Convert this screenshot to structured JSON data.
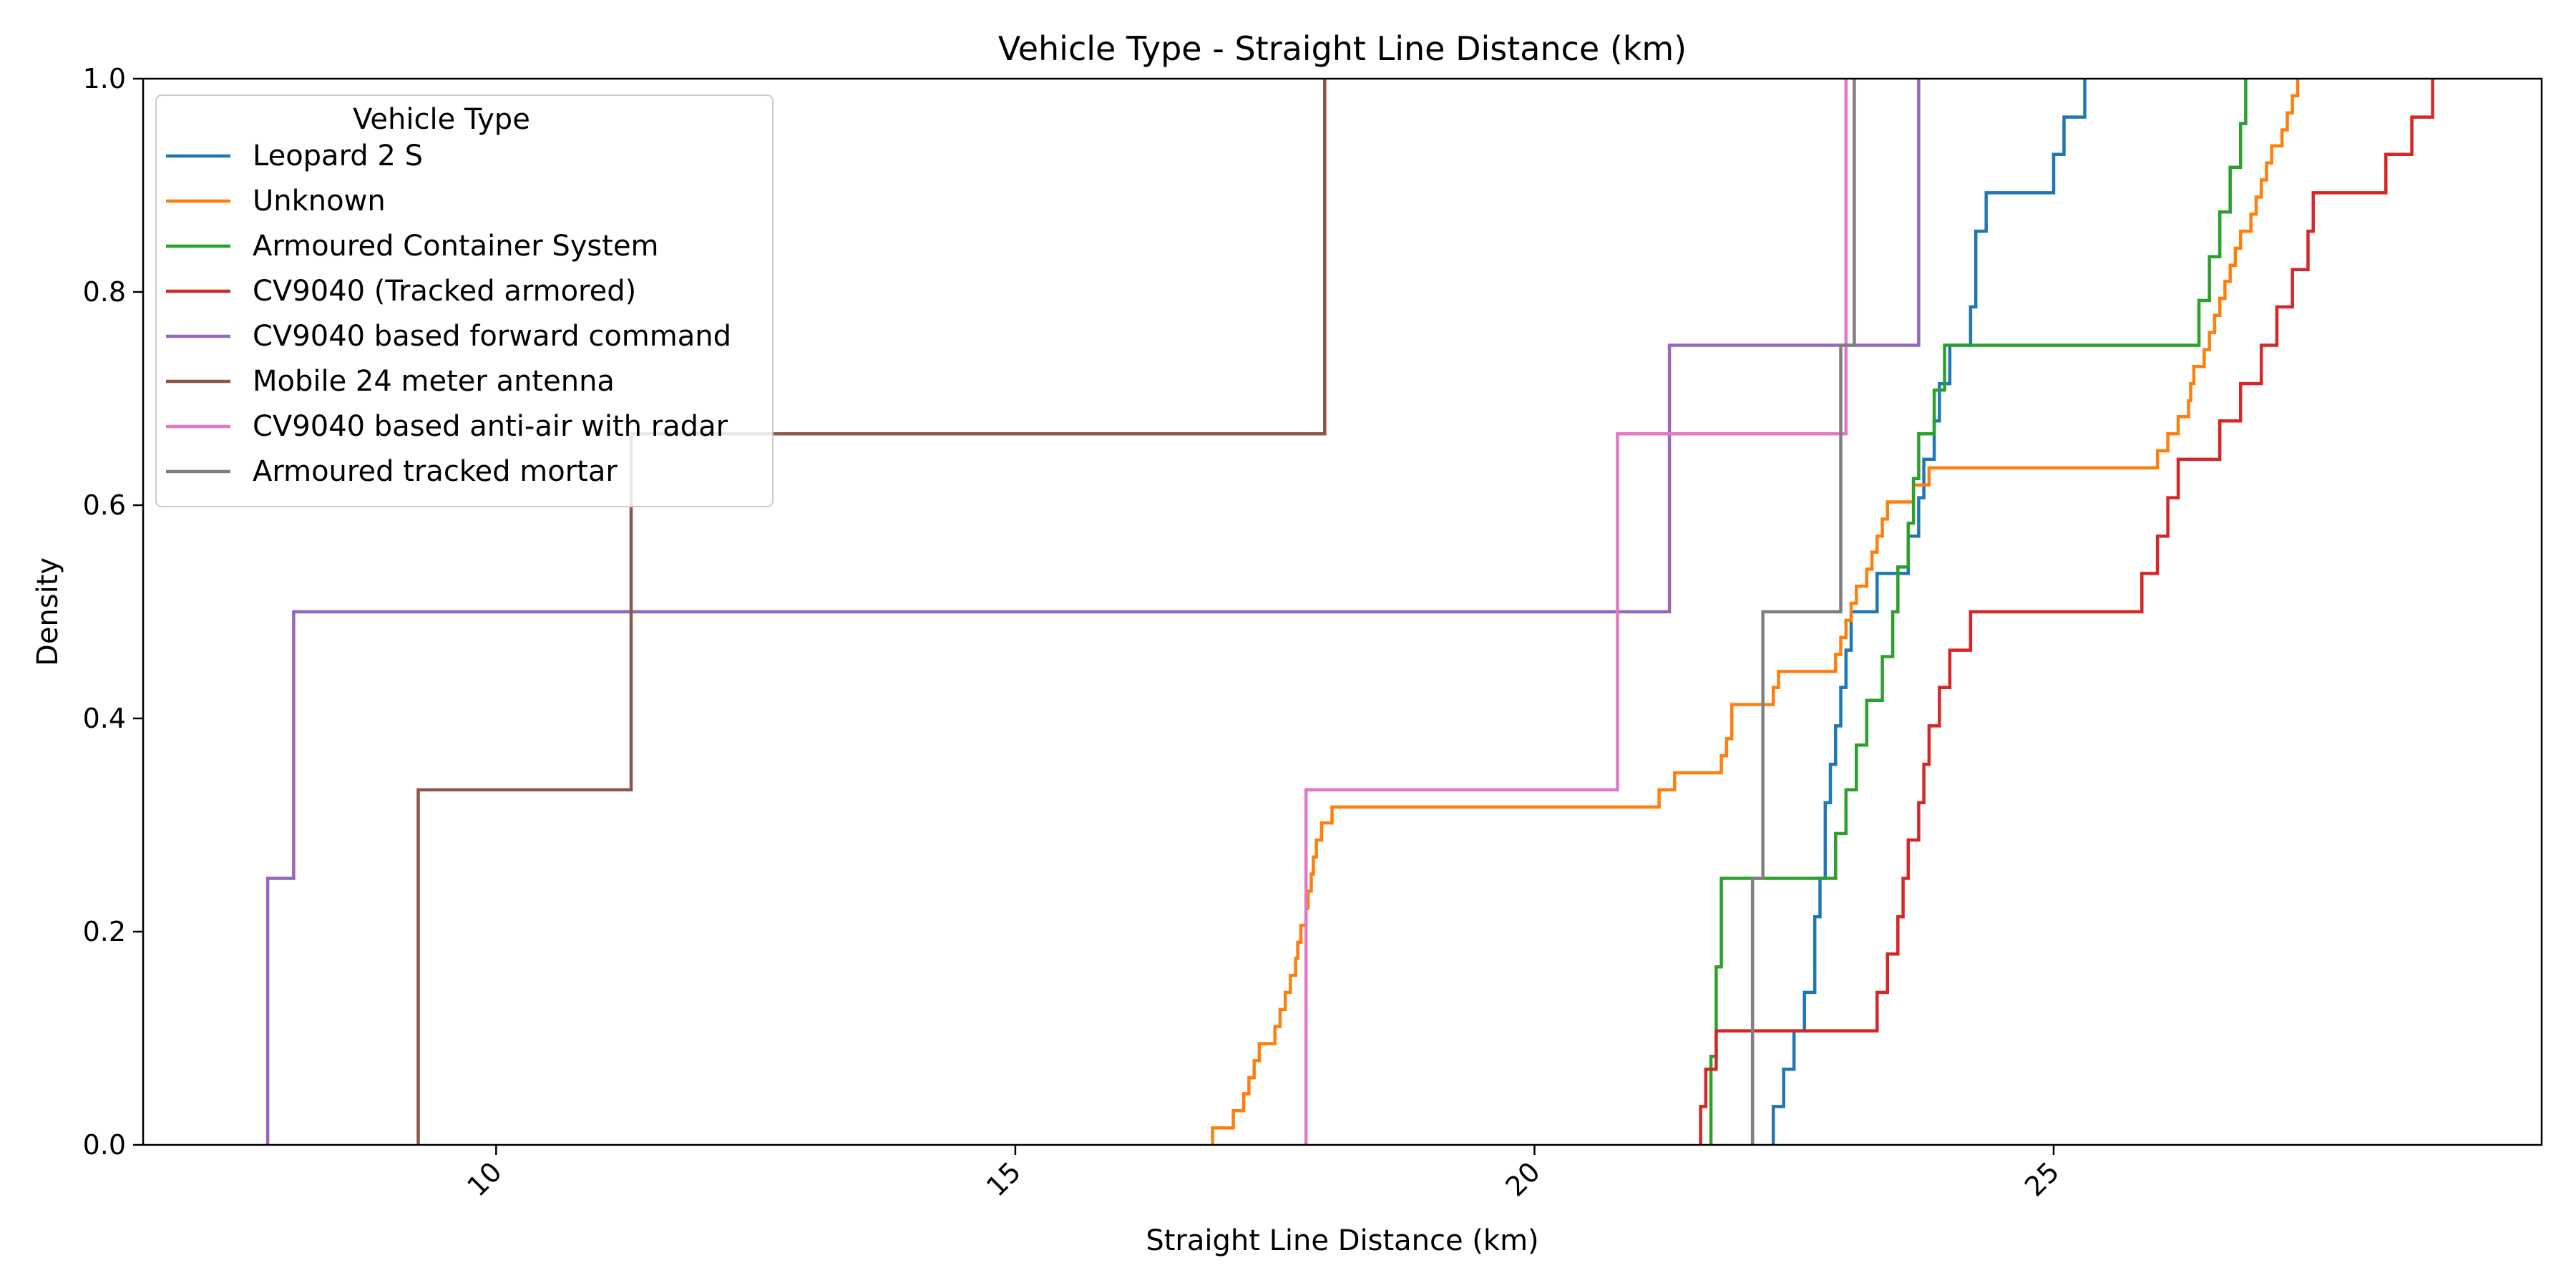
{
  "chart_data": {
    "type": "line",
    "title": "Vehicle Type - Straight Line Distance (km)",
    "xlabel": "Straight Line Distance (km)",
    "ylabel": "Density",
    "xlim": [
      6.6,
      29.7
    ],
    "ylim": [
      0,
      1.0
    ],
    "x_ticks": [
      10,
      15,
      20,
      25
    ],
    "y_ticks": [
      0.0,
      0.2,
      0.4,
      0.6,
      0.8,
      1.0
    ],
    "x_tick_rotation_deg": 45,
    "grid": false,
    "legend": {
      "title": "Vehicle Type",
      "placement": "top-left"
    },
    "series": [
      {
        "name": "Leopard 2 S",
        "color": "#1f77b4",
        "points": [
          [
            22.3,
            0
          ],
          [
            22.3,
            0.036
          ],
          [
            22.4,
            0.036
          ],
          [
            22.4,
            0.071
          ],
          [
            22.5,
            0.071
          ],
          [
            22.5,
            0.107
          ],
          [
            22.6,
            0.107
          ],
          [
            22.6,
            0.143
          ],
          [
            22.7,
            0.143
          ],
          [
            22.7,
            0.214
          ],
          [
            22.75,
            0.214
          ],
          [
            22.75,
            0.25
          ],
          [
            22.8,
            0.25
          ],
          [
            22.8,
            0.321
          ],
          [
            22.85,
            0.321
          ],
          [
            22.85,
            0.357
          ],
          [
            22.9,
            0.357
          ],
          [
            22.9,
            0.393
          ],
          [
            22.95,
            0.393
          ],
          [
            22.95,
            0.429
          ],
          [
            23.0,
            0.429
          ],
          [
            23.0,
            0.464
          ],
          [
            23.05,
            0.464
          ],
          [
            23.05,
            0.5
          ],
          [
            23.3,
            0.5
          ],
          [
            23.3,
            0.536
          ],
          [
            23.6,
            0.536
          ],
          [
            23.6,
            0.571
          ],
          [
            23.7,
            0.571
          ],
          [
            23.7,
            0.607
          ],
          [
            23.75,
            0.607
          ],
          [
            23.75,
            0.643
          ],
          [
            23.85,
            0.643
          ],
          [
            23.85,
            0.679
          ],
          [
            23.9,
            0.679
          ],
          [
            23.9,
            0.714
          ],
          [
            24.0,
            0.714
          ],
          [
            24.0,
            0.75
          ],
          [
            24.2,
            0.75
          ],
          [
            24.2,
            0.786
          ],
          [
            24.25,
            0.786
          ],
          [
            24.25,
            0.857
          ],
          [
            24.35,
            0.857
          ],
          [
            24.35,
            0.893
          ],
          [
            25.0,
            0.893
          ],
          [
            25.0,
            0.929
          ],
          [
            25.1,
            0.929
          ],
          [
            25.1,
            0.964
          ],
          [
            25.3,
            0.964
          ],
          [
            25.3,
            1.0
          ]
        ]
      },
      {
        "name": "Unknown",
        "color": "#ff7f0e",
        "points": [
          [
            16.9,
            0
          ],
          [
            16.9,
            0.016
          ],
          [
            17.1,
            0.016
          ],
          [
            17.1,
            0.032
          ],
          [
            17.2,
            0.032
          ],
          [
            17.2,
            0.048
          ],
          [
            17.25,
            0.048
          ],
          [
            17.25,
            0.063
          ],
          [
            17.3,
            0.063
          ],
          [
            17.3,
            0.079
          ],
          [
            17.35,
            0.079
          ],
          [
            17.35,
            0.095
          ],
          [
            17.5,
            0.095
          ],
          [
            17.5,
            0.111
          ],
          [
            17.55,
            0.111
          ],
          [
            17.55,
            0.127
          ],
          [
            17.6,
            0.127
          ],
          [
            17.6,
            0.143
          ],
          [
            17.65,
            0.143
          ],
          [
            17.65,
            0.159
          ],
          [
            17.7,
            0.159
          ],
          [
            17.7,
            0.175
          ],
          [
            17.72,
            0.175
          ],
          [
            17.72,
            0.19
          ],
          [
            17.75,
            0.19
          ],
          [
            17.75,
            0.206
          ],
          [
            17.8,
            0.206
          ],
          [
            17.8,
            0.222
          ],
          [
            17.82,
            0.222
          ],
          [
            17.82,
            0.238
          ],
          [
            17.85,
            0.238
          ],
          [
            17.85,
            0.254
          ],
          [
            17.87,
            0.254
          ],
          [
            17.87,
            0.27
          ],
          [
            17.9,
            0.27
          ],
          [
            17.9,
            0.286
          ],
          [
            17.95,
            0.286
          ],
          [
            17.95,
            0.302
          ],
          [
            18.05,
            0.302
          ],
          [
            18.05,
            0.317
          ],
          [
            21.2,
            0.317
          ],
          [
            21.2,
            0.333
          ],
          [
            21.35,
            0.333
          ],
          [
            21.35,
            0.349
          ],
          [
            21.8,
            0.349
          ],
          [
            21.8,
            0.365
          ],
          [
            21.85,
            0.365
          ],
          [
            21.85,
            0.381
          ],
          [
            21.9,
            0.381
          ],
          [
            21.9,
            0.413
          ],
          [
            22.3,
            0.413
          ],
          [
            22.3,
            0.429
          ],
          [
            22.35,
            0.429
          ],
          [
            22.35,
            0.444
          ],
          [
            22.9,
            0.444
          ],
          [
            22.9,
            0.46
          ],
          [
            22.95,
            0.46
          ],
          [
            22.95,
            0.476
          ],
          [
            23.0,
            0.476
          ],
          [
            23.0,
            0.492
          ],
          [
            23.05,
            0.492
          ],
          [
            23.05,
            0.508
          ],
          [
            23.1,
            0.508
          ],
          [
            23.1,
            0.524
          ],
          [
            23.2,
            0.524
          ],
          [
            23.2,
            0.54
          ],
          [
            23.25,
            0.54
          ],
          [
            23.25,
            0.556
          ],
          [
            23.3,
            0.556
          ],
          [
            23.3,
            0.571
          ],
          [
            23.35,
            0.571
          ],
          [
            23.35,
            0.587
          ],
          [
            23.4,
            0.587
          ],
          [
            23.4,
            0.603
          ],
          [
            23.65,
            0.603
          ],
          [
            23.65,
            0.619
          ],
          [
            23.8,
            0.619
          ],
          [
            23.8,
            0.635
          ],
          [
            26.0,
            0.635
          ],
          [
            26.0,
            0.651
          ],
          [
            26.1,
            0.651
          ],
          [
            26.1,
            0.667
          ],
          [
            26.2,
            0.667
          ],
          [
            26.2,
            0.683
          ],
          [
            26.3,
            0.683
          ],
          [
            26.3,
            0.698
          ],
          [
            26.32,
            0.698
          ],
          [
            26.32,
            0.714
          ],
          [
            26.35,
            0.714
          ],
          [
            26.35,
            0.73
          ],
          [
            26.45,
            0.73
          ],
          [
            26.45,
            0.746
          ],
          [
            26.5,
            0.746
          ],
          [
            26.5,
            0.762
          ],
          [
            26.55,
            0.762
          ],
          [
            26.55,
            0.778
          ],
          [
            26.6,
            0.778
          ],
          [
            26.6,
            0.794
          ],
          [
            26.65,
            0.794
          ],
          [
            26.65,
            0.81
          ],
          [
            26.7,
            0.81
          ],
          [
            26.7,
            0.825
          ],
          [
            26.75,
            0.825
          ],
          [
            26.75,
            0.841
          ],
          [
            26.8,
            0.841
          ],
          [
            26.8,
            0.857
          ],
          [
            26.9,
            0.857
          ],
          [
            26.9,
            0.873
          ],
          [
            26.95,
            0.873
          ],
          [
            26.95,
            0.889
          ],
          [
            27.0,
            0.889
          ],
          [
            27.0,
            0.905
          ],
          [
            27.05,
            0.905
          ],
          [
            27.05,
            0.921
          ],
          [
            27.1,
            0.921
          ],
          [
            27.1,
            0.937
          ],
          [
            27.2,
            0.937
          ],
          [
            27.2,
            0.952
          ],
          [
            27.25,
            0.952
          ],
          [
            27.25,
            0.968
          ],
          [
            27.3,
            0.968
          ],
          [
            27.3,
            0.984
          ],
          [
            27.35,
            0.984
          ],
          [
            27.35,
            1.0
          ]
        ]
      },
      {
        "name": "Armoured Container System",
        "color": "#2ca02c",
        "points": [
          [
            21.7,
            0
          ],
          [
            21.7,
            0.083
          ],
          [
            21.75,
            0.083
          ],
          [
            21.75,
            0.167
          ],
          [
            21.8,
            0.167
          ],
          [
            21.8,
            0.25
          ],
          [
            22.9,
            0.25
          ],
          [
            22.9,
            0.292
          ],
          [
            23.0,
            0.292
          ],
          [
            23.0,
            0.333
          ],
          [
            23.1,
            0.333
          ],
          [
            23.1,
            0.375
          ],
          [
            23.2,
            0.375
          ],
          [
            23.2,
            0.417
          ],
          [
            23.35,
            0.417
          ],
          [
            23.35,
            0.458
          ],
          [
            23.45,
            0.458
          ],
          [
            23.45,
            0.5
          ],
          [
            23.5,
            0.5
          ],
          [
            23.5,
            0.542
          ],
          [
            23.6,
            0.542
          ],
          [
            23.6,
            0.583
          ],
          [
            23.65,
            0.583
          ],
          [
            23.65,
            0.625
          ],
          [
            23.7,
            0.625
          ],
          [
            23.7,
            0.667
          ],
          [
            23.85,
            0.667
          ],
          [
            23.85,
            0.708
          ],
          [
            23.95,
            0.708
          ],
          [
            23.95,
            0.75
          ],
          [
            26.4,
            0.75
          ],
          [
            26.4,
            0.792
          ],
          [
            26.5,
            0.792
          ],
          [
            26.5,
            0.833
          ],
          [
            26.6,
            0.833
          ],
          [
            26.6,
            0.875
          ],
          [
            26.7,
            0.875
          ],
          [
            26.7,
            0.917
          ],
          [
            26.8,
            0.917
          ],
          [
            26.8,
            0.958
          ],
          [
            26.85,
            0.958
          ],
          [
            26.85,
            1.0
          ]
        ]
      },
      {
        "name": "CV9040 (Tracked armored)",
        "color": "#d62728",
        "points": [
          [
            21.6,
            0
          ],
          [
            21.6,
            0.036
          ],
          [
            21.65,
            0.036
          ],
          [
            21.65,
            0.071
          ],
          [
            21.75,
            0.071
          ],
          [
            21.75,
            0.107
          ],
          [
            23.3,
            0.107
          ],
          [
            23.3,
            0.143
          ],
          [
            23.4,
            0.143
          ],
          [
            23.4,
            0.179
          ],
          [
            23.5,
            0.179
          ],
          [
            23.5,
            0.214
          ],
          [
            23.55,
            0.214
          ],
          [
            23.55,
            0.25
          ],
          [
            23.6,
            0.25
          ],
          [
            23.6,
            0.286
          ],
          [
            23.7,
            0.286
          ],
          [
            23.7,
            0.321
          ],
          [
            23.75,
            0.321
          ],
          [
            23.75,
            0.357
          ],
          [
            23.8,
            0.357
          ],
          [
            23.8,
            0.393
          ],
          [
            23.9,
            0.393
          ],
          [
            23.9,
            0.429
          ],
          [
            24.0,
            0.429
          ],
          [
            24.0,
            0.464
          ],
          [
            24.2,
            0.464
          ],
          [
            24.2,
            0.5
          ],
          [
            25.85,
            0.5
          ],
          [
            25.85,
            0.536
          ],
          [
            26.0,
            0.536
          ],
          [
            26.0,
            0.571
          ],
          [
            26.1,
            0.571
          ],
          [
            26.1,
            0.607
          ],
          [
            26.2,
            0.607
          ],
          [
            26.2,
            0.643
          ],
          [
            26.6,
            0.643
          ],
          [
            26.6,
            0.679
          ],
          [
            26.8,
            0.679
          ],
          [
            26.8,
            0.714
          ],
          [
            27.0,
            0.714
          ],
          [
            27.0,
            0.75
          ],
          [
            27.15,
            0.75
          ],
          [
            27.15,
            0.786
          ],
          [
            27.3,
            0.786
          ],
          [
            27.3,
            0.821
          ],
          [
            27.45,
            0.821
          ],
          [
            27.45,
            0.857
          ],
          [
            27.5,
            0.857
          ],
          [
            27.5,
            0.893
          ],
          [
            28.2,
            0.893
          ],
          [
            28.2,
            0.929
          ],
          [
            28.45,
            0.929
          ],
          [
            28.45,
            0.964
          ],
          [
            28.65,
            0.964
          ],
          [
            28.65,
            1.0
          ]
        ]
      },
      {
        "name": "CV9040 based forward command",
        "color": "#9467bd",
        "points": [
          [
            7.8,
            0
          ],
          [
            7.8,
            0.25
          ],
          [
            8.05,
            0.25
          ],
          [
            8.05,
            0.5
          ],
          [
            21.3,
            0.5
          ],
          [
            21.3,
            0.75
          ],
          [
            23.7,
            0.75
          ],
          [
            23.7,
            1.0
          ]
        ]
      },
      {
        "name": "Mobile 24 meter antenna",
        "color": "#8c564b",
        "points": [
          [
            9.25,
            0
          ],
          [
            9.25,
            0.333
          ],
          [
            11.3,
            0.333
          ],
          [
            11.3,
            0.667
          ],
          [
            17.98,
            0.667
          ],
          [
            17.98,
            1.0
          ]
        ]
      },
      {
        "name": "CV9040 based anti-air with radar",
        "color": "#e377c2",
        "points": [
          [
            17.8,
            0
          ],
          [
            17.8,
            0.333
          ],
          [
            20.8,
            0.333
          ],
          [
            20.8,
            0.667
          ],
          [
            23.0,
            0.667
          ],
          [
            23.0,
            1.0
          ]
        ]
      },
      {
        "name": "Armoured tracked mortar",
        "color": "#7f7f7f",
        "points": [
          [
            22.1,
            0
          ],
          [
            22.1,
            0.25
          ],
          [
            22.2,
            0.25
          ],
          [
            22.2,
            0.5
          ],
          [
            22.95,
            0.5
          ],
          [
            22.95,
            0.75
          ],
          [
            23.08,
            0.75
          ],
          [
            23.08,
            1.0
          ]
        ]
      }
    ]
  }
}
